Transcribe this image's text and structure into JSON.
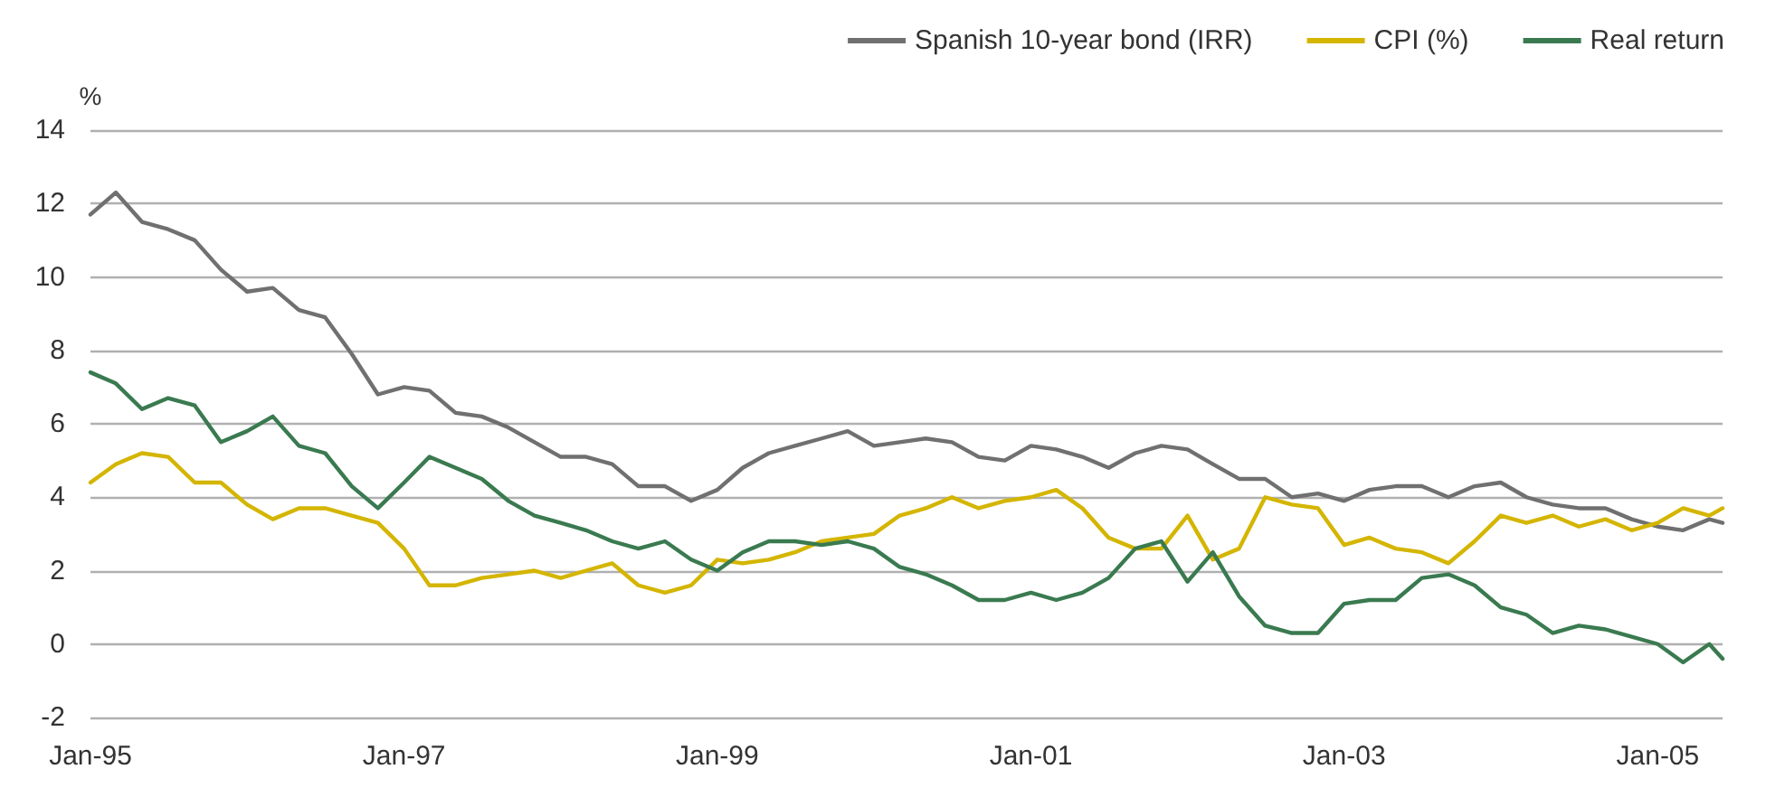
{
  "chart_data": {
    "type": "line",
    "ylabel": "%",
    "grid": "y",
    "legend": "top right",
    "marker": "none",
    "line_style": "solid",
    "x": [
      "1995-01",
      "1995-03",
      "1995-05",
      "1995-07",
      "1995-09",
      "1995-11",
      "1996-01",
      "1996-03",
      "1996-05",
      "1996-07",
      "1996-09",
      "1996-11",
      "1997-01",
      "1997-03",
      "1997-05",
      "1997-07",
      "1997-09",
      "1997-11",
      "1998-01",
      "1998-03",
      "1998-05",
      "1998-07",
      "1998-09",
      "1998-11",
      "1999-01",
      "1999-03",
      "1999-05",
      "1999-07",
      "1999-09",
      "1999-11",
      "2000-01",
      "2000-03",
      "2000-05",
      "2000-07",
      "2000-09",
      "2000-11",
      "2001-01",
      "2001-03",
      "2001-05",
      "2001-07",
      "2001-09",
      "2001-11",
      "2002-01",
      "2002-03",
      "2002-05",
      "2002-07",
      "2002-09",
      "2002-11",
      "2003-01",
      "2003-03",
      "2003-05",
      "2003-07",
      "2003-09",
      "2003-11",
      "2004-01",
      "2004-03",
      "2004-05",
      "2004-07",
      "2004-09",
      "2004-11",
      "2005-01",
      "2005-03",
      "2005-05",
      "2005-06"
    ],
    "xlim": [
      "1995-01",
      "2005-06"
    ],
    "xticks": [
      {
        "value": "1995-01",
        "label": "Jan-95"
      },
      {
        "value": "1997-01",
        "label": "Jan-97"
      },
      {
        "value": "1999-01",
        "label": "Jan-99"
      },
      {
        "value": "2001-01",
        "label": "Jan-01"
      },
      {
        "value": "2003-01",
        "label": "Jan-03"
      },
      {
        "value": "2005-01",
        "label": "Jan-05"
      }
    ],
    "ylim": [
      -2,
      14
    ],
    "yticks": [
      -2,
      0,
      2,
      4,
      6,
      8,
      10,
      12,
      14
    ],
    "series": [
      {
        "name": "Spanish 10-year bond (IRR)",
        "color": "#707070",
        "values": [
          11.7,
          12.3,
          11.5,
          11.3,
          11.0,
          10.2,
          9.6,
          9.7,
          9.1,
          8.9,
          7.9,
          6.8,
          7.0,
          6.9,
          6.3,
          6.2,
          5.9,
          5.5,
          5.1,
          5.1,
          4.9,
          4.3,
          4.3,
          3.9,
          4.2,
          4.8,
          5.2,
          5.4,
          5.6,
          5.8,
          5.4,
          5.5,
          5.6,
          5.5,
          5.1,
          5.0,
          5.4,
          5.3,
          5.1,
          4.8,
          5.2,
          5.4,
          5.3,
          4.9,
          4.5,
          4.5,
          4.0,
          4.1,
          3.9,
          4.2,
          4.3,
          4.3,
          4.0,
          4.3,
          4.4,
          4.0,
          3.8,
          3.7,
          3.7,
          3.4,
          3.2,
          3.1,
          3.4,
          3.3
        ]
      },
      {
        "name": "CPI (%)",
        "color": "#d4b500",
        "values": [
          4.4,
          4.9,
          5.2,
          5.1,
          4.4,
          4.4,
          3.8,
          3.4,
          3.7,
          3.7,
          3.5,
          3.3,
          2.6,
          1.6,
          1.6,
          1.8,
          1.9,
          2.0,
          1.8,
          2.0,
          2.2,
          1.6,
          1.4,
          1.6,
          2.3,
          2.2,
          2.3,
          2.5,
          2.8,
          2.9,
          3.0,
          3.5,
          3.7,
          4.0,
          3.7,
          3.9,
          4.0,
          4.2,
          3.7,
          2.9,
          2.6,
          2.6,
          3.5,
          2.3,
          2.6,
          4.0,
          3.8,
          3.7,
          2.7,
          2.9,
          2.6,
          2.5,
          2.2,
          2.8,
          3.5,
          3.3,
          3.5,
          3.2,
          3.4,
          3.1,
          3.3,
          3.7,
          3.5,
          3.7
        ]
      },
      {
        "name": "Real return",
        "color": "#3a7a50",
        "values": [
          7.4,
          7.1,
          6.4,
          6.7,
          6.5,
          5.5,
          5.8,
          6.2,
          5.4,
          5.2,
          4.3,
          3.7,
          4.4,
          5.1,
          4.8,
          4.5,
          3.9,
          3.5,
          3.3,
          3.1,
          2.8,
          2.6,
          2.8,
          2.3,
          2.0,
          2.5,
          2.8,
          2.8,
          2.7,
          2.8,
          2.6,
          2.1,
          1.9,
          1.6,
          1.2,
          1.2,
          1.4,
          1.2,
          1.4,
          1.8,
          2.6,
          2.8,
          1.7,
          2.5,
          1.3,
          0.5,
          0.3,
          0.3,
          1.1,
          1.2,
          1.2,
          1.8,
          1.9,
          1.6,
          1.0,
          0.8,
          0.3,
          0.5,
          0.4,
          0.2,
          0.0,
          -0.5,
          0.0,
          -0.4
        ]
      }
    ]
  }
}
